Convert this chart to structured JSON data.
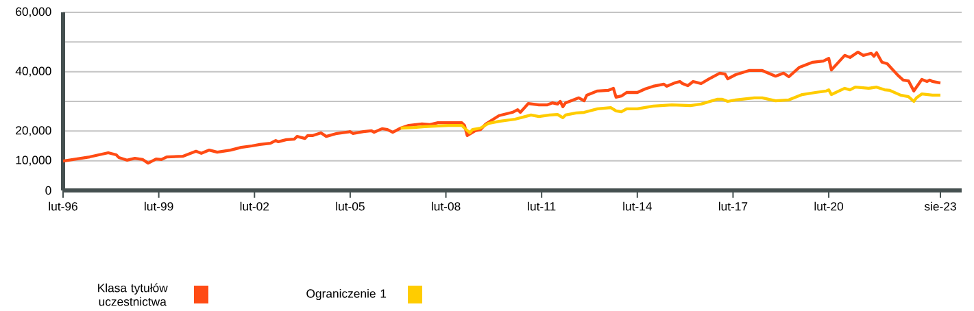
{
  "chart_data": {
    "type": "line",
    "series": [
      {
        "name": "Klasa tytułów uczestnictwa",
        "color": "#ff4b14",
        "x": [
          "1996-02",
          "1996-12",
          "1997-07",
          "1997-10",
          "1997-11",
          "1998-02",
          "1998-05",
          "1998-08",
          "1998-10",
          "1999-01",
          "1999-03",
          "1999-05",
          "1999-11",
          "2000-04",
          "2000-06",
          "2000-09",
          "2000-12",
          "2001-05",
          "2001-09",
          "2002-01",
          "2002-04",
          "2002-08",
          "2002-10",
          "2002-11",
          "2003-02",
          "2003-05",
          "2003-06",
          "2003-09",
          "2003-10",
          "2003-12",
          "2004-03",
          "2004-05",
          "2004-09",
          "2005-02",
          "2005-03",
          "2005-07",
          "2005-10",
          "2005-11",
          "2006-02",
          "2006-04",
          "2006-06",
          "2006-09",
          "2006-12",
          "2007-05",
          "2007-08",
          "2007-11",
          "2008-04",
          "2008-08",
          "2008-09",
          "2008-10",
          "2009-01",
          "2009-03",
          "2009-05",
          "2009-10",
          "2010-03",
          "2010-05",
          "2010-06",
          "2010-09",
          "2011-01",
          "2011-04",
          "2011-06",
          "2011-08",
          "2011-09",
          "2011-10",
          "2011-11",
          "2012-04",
          "2012-06",
          "2012-07",
          "2012-11",
          "2013-03",
          "2013-05",
          "2013-06",
          "2013-08",
          "2013-10",
          "2014-02",
          "2014-05",
          "2014-08",
          "2014-12",
          "2015-01",
          "2015-04",
          "2015-06",
          "2015-07",
          "2015-09",
          "2015-11",
          "2016-02",
          "2016-05",
          "2016-09",
          "2016-11",
          "2016-12",
          "2017-03",
          "2017-08",
          "2018-01",
          "2018-06",
          "2018-09",
          "2018-11",
          "2019-03",
          "2019-08",
          "2019-12",
          "2020-02",
          "2020-03",
          "2020-08",
          "2020-10",
          "2021-01",
          "2021-03",
          "2021-06",
          "2021-07",
          "2021-08",
          "2021-10",
          "2021-12",
          "2022-04",
          "2022-06",
          "2022-08",
          "2022-10",
          "2023-01",
          "2023-03",
          "2023-04",
          "2023-05",
          "2023-08"
        ],
        "values": [
          9900,
          11300,
          12700,
          12000,
          11100,
          10200,
          10800,
          10400,
          9200,
          10600,
          10400,
          11300,
          11500,
          13200,
          12500,
          13600,
          12900,
          13600,
          14500,
          15000,
          15500,
          15900,
          16800,
          16400,
          17100,
          17300,
          18200,
          17500,
          18500,
          18500,
          19400,
          18200,
          19200,
          19800,
          19200,
          19800,
          20100,
          19600,
          20800,
          20500,
          19600,
          21000,
          21900,
          22400,
          22200,
          22800,
          22800,
          22800,
          21900,
          18500,
          20100,
          20500,
          22400,
          25200,
          26300,
          27200,
          26300,
          29300,
          28800,
          28800,
          29500,
          29100,
          30000,
          28200,
          29500,
          31200,
          30200,
          32100,
          33500,
          33700,
          34400,
          31400,
          31800,
          33000,
          33000,
          34200,
          35100,
          35800,
          35100,
          36200,
          36700,
          36000,
          35300,
          36700,
          36000,
          37600,
          39500,
          39200,
          37600,
          39000,
          40400,
          40400,
          38500,
          39500,
          38300,
          41500,
          43200,
          43600,
          44500,
          40600,
          45500,
          44800,
          46600,
          45500,
          46200,
          45200,
          46400,
          43200,
          42700,
          38800,
          37200,
          36900,
          33500,
          37400,
          36700,
          37200,
          36700,
          36200
        ]
      },
      {
        "name": "Ograniczenie 1",
        "color": "#ffcc00",
        "x": [
          "2006-09",
          "2007-02",
          "2007-06",
          "2008-03",
          "2008-08",
          "2008-09",
          "2008-11",
          "2008-12",
          "2009-03",
          "2009-06",
          "2009-10",
          "2010-04",
          "2010-10",
          "2011-01",
          "2011-05",
          "2011-08",
          "2011-10",
          "2011-11",
          "2012-03",
          "2012-06",
          "2012-11",
          "2013-04",
          "2013-06",
          "2013-08",
          "2013-10",
          "2014-02",
          "2014-08",
          "2015-03",
          "2015-10",
          "2016-02",
          "2016-08",
          "2016-10",
          "2016-12",
          "2017-03",
          "2017-10",
          "2018-01",
          "2018-06",
          "2018-11",
          "2019-04",
          "2019-09",
          "2020-01",
          "2020-02",
          "2020-03",
          "2020-08",
          "2020-10",
          "2020-12",
          "2021-05",
          "2021-08",
          "2021-11",
          "2022-01",
          "2022-05",
          "2022-08",
          "2022-10",
          "2022-11",
          "2023-01",
          "2023-05",
          "2023-08"
        ],
        "values": [
          21000,
          21200,
          21500,
          21900,
          21900,
          21000,
          19400,
          20500,
          21000,
          22600,
          23300,
          24000,
          25400,
          24900,
          25400,
          25600,
          24500,
          25400,
          26100,
          26300,
          27500,
          27900,
          26800,
          26500,
          27500,
          27500,
          28400,
          28800,
          28600,
          29100,
          30700,
          30700,
          30000,
          30500,
          31200,
          31200,
          30200,
          30500,
          32300,
          33000,
          33500,
          33900,
          32300,
          34400,
          33900,
          34800,
          34400,
          34800,
          33900,
          33700,
          32100,
          31600,
          30000,
          31200,
          32500,
          32100,
          32100
        ]
      }
    ],
    "xlim": [
      "1996-02",
      "2024-04"
    ],
    "xticks": [
      {
        "value": "1996-02",
        "label": "lut-96"
      },
      {
        "value": "1999-02",
        "label": "lut-99"
      },
      {
        "value": "2002-02",
        "label": "lut-02"
      },
      {
        "value": "2005-02",
        "label": "lut-05"
      },
      {
        "value": "2008-02",
        "label": "lut-08"
      },
      {
        "value": "2011-02",
        "label": "lut-11"
      },
      {
        "value": "2014-02",
        "label": "lut-14"
      },
      {
        "value": "2017-02",
        "label": "lut-17"
      },
      {
        "value": "2020-02",
        "label": "lut-20"
      },
      {
        "value": "2023-08",
        "label": "sie-23"
      }
    ],
    "ylim": [
      0,
      60000
    ],
    "yticks": [
      0,
      {
        "value": 10000,
        "label": "10,000"
      },
      {
        "value": 20000,
        "label": "20,000"
      },
      {
        "value": 30000,
        "label": null
      },
      {
        "value": 40000,
        "label": "40,000"
      },
      {
        "value": 50000,
        "label": null
      },
      {
        "value": 60000,
        "label": "60,000"
      }
    ],
    "grid": "y",
    "legend": "bottom"
  }
}
